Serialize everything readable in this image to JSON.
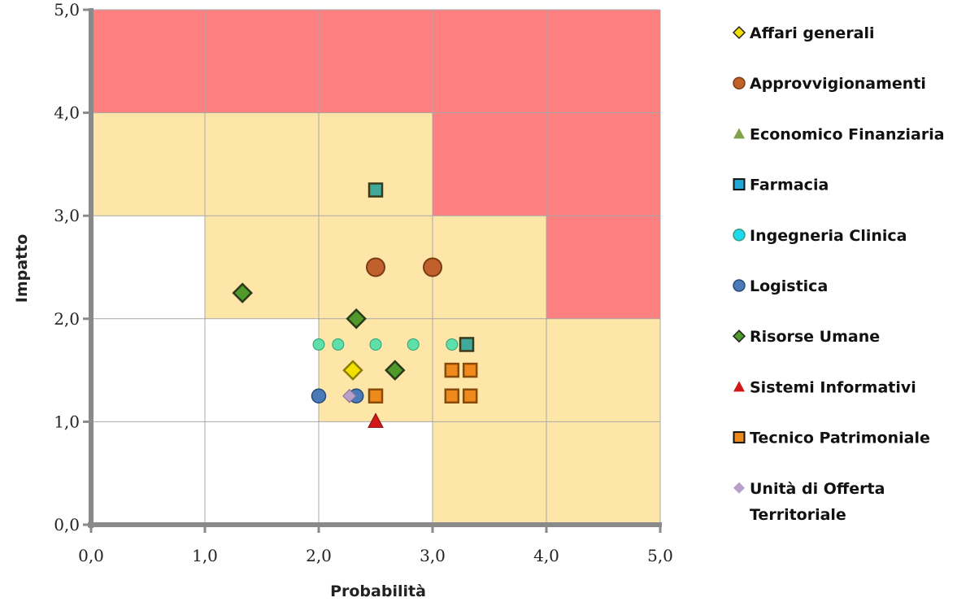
{
  "chart_data": {
    "type": "scatter",
    "xlabel": "Probabilità",
    "ylabel": "Impatto",
    "xlim": [
      0,
      5
    ],
    "ylim": [
      0,
      5
    ],
    "x_ticks": [
      "0,0",
      "1,0",
      "2,0",
      "3,0",
      "4,0",
      "5,0"
    ],
    "y_ticks": [
      "0,0",
      "1,0",
      "2,0",
      "3,0",
      "4,0",
      "5,0"
    ],
    "grid": true,
    "legend_position": "right",
    "zone_colors": {
      "high": "#fe7f7f",
      "medium": "#fde6a7",
      "low": "#ffffff"
    },
    "zones": [
      {
        "level": "high",
        "x": [
          0,
          5
        ],
        "y": [
          4,
          5
        ]
      },
      {
        "level": "high",
        "x": [
          3,
          5
        ],
        "y": [
          3,
          4
        ]
      },
      {
        "level": "high",
        "x": [
          4,
          5
        ],
        "y": [
          2,
          3
        ]
      },
      {
        "level": "medium",
        "x": [
          0,
          3
        ],
        "y": [
          3,
          4
        ]
      },
      {
        "level": "medium",
        "x": [
          1,
          4
        ],
        "y": [
          2,
          3
        ]
      },
      {
        "level": "medium",
        "x": [
          2,
          5
        ],
        "y": [
          1,
          2
        ]
      },
      {
        "level": "medium",
        "x": [
          3,
          5
        ],
        "y": [
          0,
          1
        ]
      }
    ],
    "series": [
      {
        "name": "Affari generali",
        "marker": "diamond",
        "color": "#f2e000",
        "stroke": "#8a7f00",
        "points": [
          [
            2.3,
            1.5
          ]
        ]
      },
      {
        "name": "Approvvigionamenti",
        "marker": "circle",
        "color": "#c0602a",
        "stroke": "#7a3b14",
        "points": [
          [
            2.5,
            2.5
          ],
          [
            3.0,
            2.5
          ]
        ]
      },
      {
        "name": "Economico Finanziaria",
        "marker": "triangle",
        "color": "#7fa24a",
        "stroke": "#4f6a2a",
        "points": []
      },
      {
        "name": "Farmacia",
        "marker": "square",
        "color": "#3fa99a",
        "stroke": "#3a3a1a",
        "legend_color": "#21a8d8",
        "points": [
          [
            2.5,
            3.25
          ],
          [
            3.3,
            1.75
          ]
        ]
      },
      {
        "name": "Ingegneria Clinica",
        "marker": "small-circle",
        "color": "#5fe0a8",
        "stroke": "#2f9f78",
        "legend_color": "#20d8f0",
        "points": [
          [
            2.0,
            1.75
          ],
          [
            2.17,
            1.75
          ],
          [
            2.5,
            1.75
          ],
          [
            2.83,
            1.75
          ],
          [
            3.17,
            1.75
          ]
        ]
      },
      {
        "name": "Logistica",
        "marker": "circle-small",
        "color": "#4a7ab8",
        "stroke": "#2a4a78",
        "points": [
          [
            2.0,
            1.25
          ],
          [
            2.33,
            1.25
          ]
        ]
      },
      {
        "name": "Risorse Umane",
        "marker": "diamond",
        "color": "#4f9a2a",
        "stroke": "#2a3a1a",
        "points": [
          [
            1.33,
            2.25
          ],
          [
            2.33,
            2.0
          ],
          [
            2.67,
            1.5
          ]
        ]
      },
      {
        "name": "Sistemi Informativi",
        "marker": "triangle",
        "color": "#d01818",
        "stroke": "#8a0a0a",
        "points": [
          [
            2.5,
            1.0
          ]
        ]
      },
      {
        "name": "Tecnico Patrimoniale",
        "marker": "square",
        "color": "#ee8a1c",
        "stroke": "#8a4a0a",
        "points": [
          [
            2.5,
            1.25
          ],
          [
            3.17,
            1.5
          ],
          [
            3.33,
            1.5
          ],
          [
            3.17,
            1.25
          ],
          [
            3.33,
            1.25
          ]
        ]
      },
      {
        "name": "Unità di Offerta Territoriale",
        "legend_lines": [
          "Unità di Offerta",
          "Territoriale"
        ],
        "marker": "diamond-small",
        "color": "#b8a0c8",
        "stroke": "#8a7098",
        "points": [
          [
            2.27,
            1.25
          ]
        ]
      }
    ]
  }
}
